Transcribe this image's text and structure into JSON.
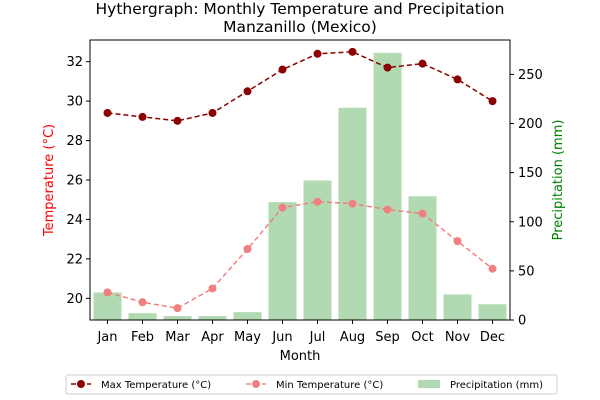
{
  "chart_data": {
    "type": "bar",
    "title_line1": "Hythergraph: Monthly Temperature and Precipitation",
    "title_line2": "Manzanillo (Mexico)",
    "xlabel": "Month",
    "ylabel_left": "Temperature (°C)",
    "ylabel_right": "Precipitation (mm)",
    "categories": [
      "Jan",
      "Feb",
      "Mar",
      "Apr",
      "May",
      "Jun",
      "Jul",
      "Aug",
      "Sep",
      "Oct",
      "Nov",
      "Dec"
    ],
    "left_axis": {
      "ylim": [
        18.9,
        33.1
      ],
      "ticks": [
        20,
        22,
        24,
        26,
        28,
        30,
        32
      ],
      "color": "#ff0000"
    },
    "right_axis": {
      "ylim": [
        0,
        285
      ],
      "ticks": [
        0,
        50,
        100,
        150,
        200,
        250
      ],
      "color": "#008000"
    },
    "series": [
      {
        "name": "Max Temperature (°C)",
        "kind": "line",
        "axis": "left",
        "color": "#8b0000",
        "dashed": true,
        "values": [
          29.4,
          29.2,
          29.0,
          29.4,
          30.5,
          31.6,
          32.4,
          32.5,
          31.7,
          31.9,
          31.1,
          30.0
        ]
      },
      {
        "name": "Min Temperature (°C)",
        "kind": "line",
        "axis": "left",
        "color": "#f08080",
        "dashed": true,
        "values": [
          20.3,
          19.8,
          19.5,
          20.5,
          22.5,
          24.6,
          24.9,
          24.8,
          24.5,
          24.3,
          22.9,
          21.5
        ]
      },
      {
        "name": "Precipitation (mm)",
        "kind": "bar",
        "axis": "right",
        "color": "#b2dab2",
        "values": [
          28,
          7,
          4,
          4,
          8,
          120,
          142,
          216,
          272,
          126,
          26,
          16
        ]
      }
    ],
    "grid": false,
    "legend_position": "bottom"
  }
}
